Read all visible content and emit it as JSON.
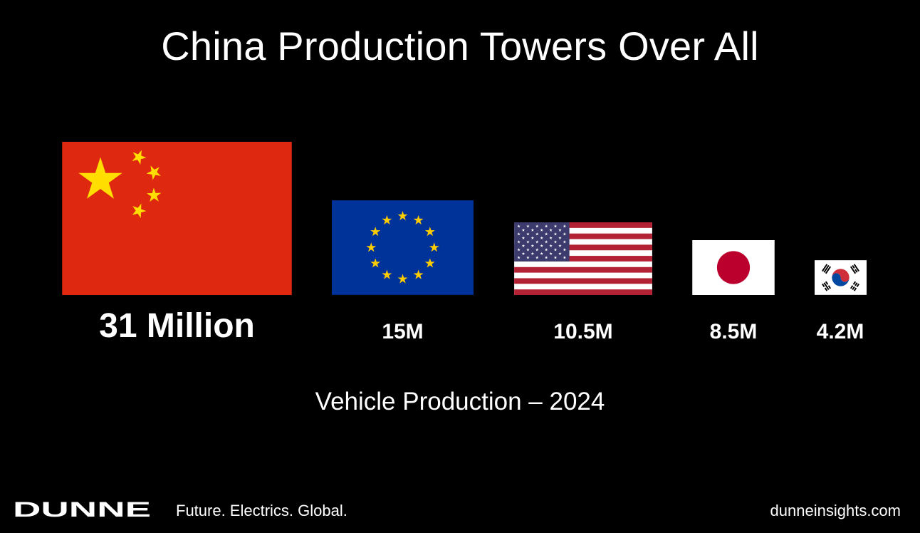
{
  "chart_data": {
    "type": "bar",
    "title": "China Production Towers Over All",
    "subtitle": "Vehicle Production – 2024",
    "categories": [
      "China",
      "EU",
      "USA",
      "Japan",
      "South Korea"
    ],
    "values": [
      31,
      15,
      10.5,
      8.5,
      4.2
    ],
    "unit": "million vehicles",
    "value_labels": [
      "31 Million",
      "15M",
      "10.5M",
      "8.5M",
      "4.2M"
    ]
  },
  "footer": {
    "brand": "DUNNE",
    "tagline": "Future. Electrics. Global.",
    "website": "dunneinsights.com"
  },
  "icons": [
    "china-flag-icon",
    "eu-flag-icon",
    "us-flag-icon",
    "japan-flag-icon",
    "south-korea-flag-icon"
  ],
  "colors": {
    "background": "#000000",
    "text": "#ffffff",
    "china_red": "#de2910",
    "china_yellow": "#ffde00",
    "eu_blue": "#003399",
    "eu_yellow": "#ffcc00",
    "us_red": "#b22234",
    "us_blue": "#3c3b6e",
    "japan_red": "#bc002d",
    "korea_red": "#cd2e3a",
    "korea_blue": "#0047a0"
  }
}
